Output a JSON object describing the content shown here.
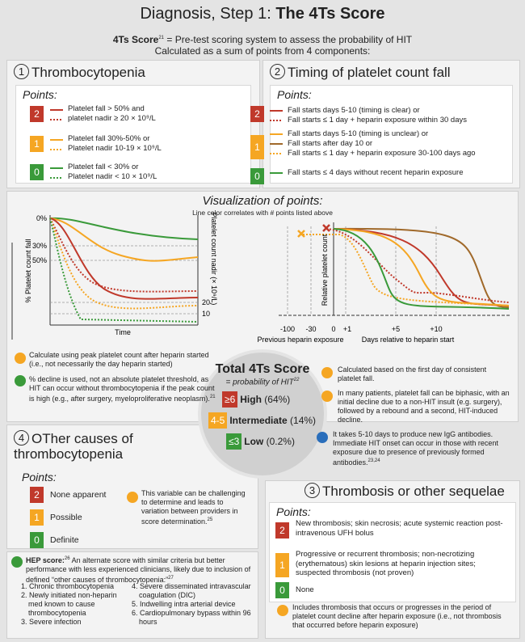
{
  "header": {
    "title_plain": "Diagnosis, Step 1: ",
    "title_bold": "The 4Ts Score",
    "subtitle_bold": "4Ts Score",
    "subtitle_ref": "21",
    "subtitle_rest": " = Pre-test scoring system to assess the probability of HIT",
    "subtitle_line2": "Calculated as a sum of points from 4 components:"
  },
  "thrombocytopenia": {
    "number": "1",
    "title": "Thrombocytopenia",
    "points_label": "Points:",
    "items": [
      {
        "score": "2",
        "lines": [
          "Platelet fall > 50% and",
          "platelet nadir ≥ 20 × 10⁹/L"
        ]
      },
      {
        "score": "1",
        "lines": [
          "Platelet fall 30%-50% or",
          "Platelet nadir 10-19 × 10⁹/L"
        ]
      },
      {
        "score": "0",
        "lines": [
          "Platelet fall < 30% or",
          "Platelet nadir < 10 × 10⁹/L"
        ]
      }
    ]
  },
  "timing": {
    "number": "2",
    "title": "Timing of platelet count fall",
    "points_label": "Points:",
    "items": [
      {
        "score": "2",
        "lines": [
          "Fall starts days 5-10 (timing is clear) or",
          "Fall starts ≤ 1 day + heparin exposure within 30 days"
        ]
      },
      {
        "score": "1",
        "lines": [
          "Fall starts days 5-10 (timing is unclear) or",
          "Fall starts after day 10 or",
          "Fall starts ≤ 1 day + heparin exposure 30-100 days ago"
        ]
      },
      {
        "score": "0",
        "lines": [
          "Fall starts ≤ 4 days without recent heparin exposure"
        ]
      }
    ]
  },
  "visualization": {
    "title": "Visualization of points:",
    "subtitle": "Line color correlates with # points listed above",
    "left_chart": {
      "y_title": "% Platelet count fall",
      "y2_title": "Platelet count nadir (× 10⁹/L)",
      "x_title": "Time",
      "y_labels": [
        "0%",
        "30%",
        "50%"
      ],
      "y2_labels": [
        "20",
        "10"
      ]
    },
    "right_chart": {
      "y_title": "Relative platelet count",
      "x_labels": [
        "-100",
        "-30",
        "0",
        "+1",
        "+5",
        "+10"
      ],
      "x_title_left": "Previous heparin exposure",
      "x_title_right": "Days relative to heparin start"
    }
  },
  "left_notes": [
    {
      "text": "Calculate using peak platelet count after heparin started (i.e., not necessarily the day heparin started)"
    },
    {
      "text": "% decline is used, not an absolute platelet threshold, as HIT can occur without thrombocytopenia if the peak count is high (e.g., after surgery, myeloproliferative neoplasm).",
      "ref": "21"
    }
  ],
  "right_notes": [
    {
      "text": "Calculated based on the first day of consistent platelet fall."
    },
    {
      "text": "In many patients, platelet fall can be biphasic, with an initial decline due to a non-HIT insult (e.g. surgery), followed by a rebound and a second, HIT-induced decline."
    },
    {
      "text": "It takes 5-10 days to produce new IgG antibodies. Immediate HIT onset can occur in those with recent exposure due to presence of previously formed antibodies.",
      "ref": "23,24"
    }
  ],
  "total": {
    "title": "Total 4Ts Score",
    "subtitle": "= probability of HIT",
    "ref": "22",
    "rows": [
      {
        "range": "≥6",
        "level": "High",
        "prob": "(64%)"
      },
      {
        "range": "4-5",
        "level": "Intermediate",
        "prob": "(14%)"
      },
      {
        "range": "≤3",
        "level": "Low",
        "prob": "(0.2%)"
      }
    ]
  },
  "other_causes": {
    "number": "4",
    "title": "OTher causes of thrombocytopenia",
    "points_label": "Points:",
    "items": [
      {
        "score": "2",
        "label": "None apparent"
      },
      {
        "score": "1",
        "label": "Possible"
      },
      {
        "score": "0",
        "label": "Definite"
      }
    ],
    "note": "This variable can be challenging to determine and leads to variation between providers in score determination.",
    "note_ref": "25"
  },
  "hep": {
    "label": "HEP score:",
    "ref": "26",
    "text": "An alternate score with similar criteria but better performance with less experienced clinicians, likely due to inclusion of defined “other causes of thrombocytopenia:”",
    "ref2": "27",
    "list": [
      "1. Chronic thrombocytopenia",
      "2. Newly initiated non-heparin med known to cause thrombocytopenia",
      "3. Severe infection",
      "4. Severe disseminated intravascular coagulation (DIC)",
      "5. Indwelling intra arterial device",
      "6. Cardiopulmonary bypass within 96 hours"
    ]
  },
  "thrombosis": {
    "number": "3",
    "title": "Thrombosis or other sequelae",
    "points_label": "Points:",
    "items": [
      {
        "score": "2",
        "label": "New thrombosis; skin necrosis; acute systemic reaction post-intravenous UFH bolus"
      },
      {
        "score": "1",
        "label": "Progressive or recurrent thrombosis; non-necrotizing (erythematous) skin lesions at heparin injection sites; suspected thrombosis (not proven)"
      },
      {
        "score": "0",
        "label": "None"
      }
    ],
    "note": "Includes thrombosis that occurs or progresses in the period of platelet count decline after heparin exposure (i.e., not thrombosis that occurred before heparin exposure)"
  }
}
